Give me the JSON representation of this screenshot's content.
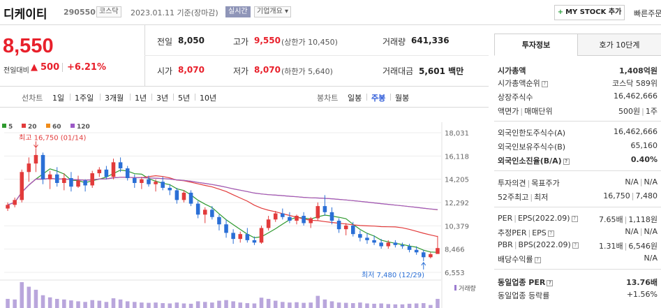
{
  "header": {
    "name": "디케이티",
    "code": "290550",
    "market": "코스닥",
    "date": "2023.01.11",
    "date_suffix": "기준(장마감)",
    "live": "실시간",
    "company_info": "기업개요 ▾",
    "mystock": "MY STOCK 추가",
    "quick": "빠른주문"
  },
  "price": {
    "current": "8,550",
    "change_label": "전일대비",
    "change_arrow": "▲",
    "change": "500",
    "change_pct": "+6.21%"
  },
  "quote": {
    "prev_label": "전일",
    "prev": "8,050",
    "high_label": "고가",
    "high": "9,550",
    "high_sub": "(상한가 10,450)",
    "volume_label": "거래량",
    "volume": "641,336",
    "open_label": "시가",
    "open": "8,070",
    "low_label": "저가",
    "low": "8,070",
    "low_sub": "(하한가 5,640)",
    "amount_label": "거래대금",
    "amount": "5,601",
    "amount_unit": "백만"
  },
  "chart_tabs": {
    "line_label": "선차트",
    "line_items": [
      "1일",
      "1주일",
      "3개월",
      "1년",
      "3년",
      "5년",
      "10년"
    ],
    "candle_label": "봉차트",
    "candle_items": [
      "일봉",
      "주봉",
      "월봉"
    ],
    "active_candle": "주봉"
  },
  "chart_data": {
    "type": "candlestick",
    "legend": [
      {
        "name": "5",
        "color": "#2f9a2f"
      },
      {
        "name": "20",
        "color": "#e23b3b"
      },
      {
        "name": "60",
        "color": "#f08c1a"
      },
      {
        "name": "120",
        "color": "#9b59c6"
      }
    ],
    "yticks": [
      "18,031",
      "16,118",
      "14,205",
      "12,292",
      "10,379",
      "8,466",
      "6,553"
    ],
    "ylim": [
      6553,
      18031
    ],
    "max_label": "최고 16,750 (01/14)",
    "min_label": "최저 7,480 (12/29)",
    "volume_label": "거래량",
    "up_color": "#e23b3b",
    "down_color": "#2a6fd6",
    "candles": [
      [
        11800,
        12300,
        11600,
        12100
      ],
      [
        12100,
        12700,
        11900,
        12500
      ],
      [
        12500,
        15000,
        12300,
        14800
      ],
      [
        14800,
        16000,
        14000,
        15500
      ],
      [
        15500,
        16750,
        14800,
        16200
      ],
      [
        16200,
        16400,
        13800,
        14200
      ],
      [
        14200,
        14900,
        13400,
        14600
      ],
      [
        14600,
        15200,
        13600,
        13900
      ],
      [
        13900,
        14700,
        13300,
        14300
      ],
      [
        14300,
        14800,
        13200,
        13600
      ],
      [
        13600,
        14500,
        13500,
        14100
      ],
      [
        14100,
        14200,
        13200,
        13700
      ],
      [
        13700,
        14900,
        13500,
        14700
      ],
      [
        14700,
        15200,
        14400,
        15000
      ],
      [
        15000,
        15300,
        14200,
        14400
      ],
      [
        14400,
        15900,
        14200,
        15600
      ],
      [
        15600,
        16000,
        14800,
        15100
      ],
      [
        15100,
        15300,
        14100,
        14300
      ],
      [
        14300,
        14600,
        13500,
        13900
      ],
      [
        13900,
        14400,
        13400,
        14200
      ],
      [
        14200,
        14500,
        13600,
        13800
      ],
      [
        13800,
        14200,
        13200,
        14000
      ],
      [
        14000,
        14400,
        13300,
        13500
      ],
      [
        13500,
        13800,
        12900,
        13300
      ],
      [
        13300,
        13500,
        12200,
        12500
      ],
      [
        12500,
        13300,
        12300,
        13100
      ],
      [
        13100,
        13300,
        12000,
        12200
      ],
      [
        12200,
        12400,
        11000,
        11300
      ],
      [
        11300,
        11900,
        10600,
        11700
      ],
      [
        11700,
        12000,
        10900,
        11100
      ],
      [
        11100,
        11300,
        10000,
        10500
      ],
      [
        10500,
        10900,
        9400,
        9800
      ],
      [
        9800,
        10100,
        8900,
        9300
      ],
      [
        9300,
        9900,
        9000,
        9700
      ],
      [
        9700,
        10200,
        9000,
        9200
      ],
      [
        9200,
        9500,
        8800,
        9000
      ],
      [
        9000,
        10400,
        8900,
        10200
      ],
      [
        10200,
        11200,
        10000,
        10900
      ],
      [
        10900,
        11600,
        10700,
        11400
      ],
      [
        11400,
        11800,
        10900,
        11100
      ],
      [
        11100,
        11500,
        10600,
        10800
      ],
      [
        10800,
        11300,
        10500,
        11200
      ],
      [
        11200,
        11500,
        10400,
        10600
      ],
      [
        10600,
        11100,
        10200,
        11000
      ],
      [
        11000,
        12300,
        10800,
        12000
      ],
      [
        12000,
        12900,
        11200,
        11500
      ],
      [
        11500,
        11900,
        10500,
        10800
      ],
      [
        10800,
        11000,
        9800,
        10100
      ],
      [
        10100,
        10600,
        9600,
        10400
      ],
      [
        10400,
        10700,
        9500,
        9700
      ],
      [
        9700,
        10000,
        9100,
        9400
      ],
      [
        9400,
        9800,
        8900,
        9200
      ],
      [
        9200,
        9600,
        8800,
        9000
      ],
      [
        9000,
        9300,
        8500,
        8700
      ],
      [
        8700,
        9200,
        8500,
        9000
      ],
      [
        9000,
        9200,
        8600,
        8800
      ],
      [
        8800,
        9000,
        8500,
        8700
      ],
      [
        8700,
        8900,
        8200,
        8400
      ],
      [
        8400,
        8700,
        8000,
        8200
      ],
      [
        8200,
        8400,
        7480,
        7800
      ],
      [
        7800,
        8200,
        7700,
        8050
      ],
      [
        8070,
        9550,
        8070,
        8550
      ]
    ],
    "volumes": [
      30,
      28,
      85,
      70,
      60,
      42,
      35,
      30,
      28,
      25,
      22,
      20,
      26,
      24,
      20,
      32,
      28,
      22,
      20,
      18,
      17,
      18,
      16,
      15,
      18,
      15,
      14,
      22,
      20,
      18,
      24,
      26,
      22,
      18,
      16,
      15,
      34,
      30,
      24,
      20,
      18,
      19,
      17,
      18,
      40,
      28,
      22,
      18,
      17,
      16,
      18,
      15,
      14,
      15,
      13,
      12,
      12,
      14,
      15,
      16,
      10,
      30
    ]
  },
  "right_panel": {
    "tab_invest": "투자정보",
    "tab_hoga": "호가 10단계",
    "market_cap_label": "시가총액",
    "market_cap": "1,408억원",
    "market_cap_rank_label": "시가총액순위",
    "market_cap_rank": "코스닥 589위",
    "shares_label": "상장주식수",
    "shares": "16,462,666",
    "par_label": "액면가",
    "unit_label": "매매단위",
    "par_value": "500원",
    "unit_value": "1주",
    "foreign_limit_label": "외국인한도주식수(A)",
    "foreign_limit": "16,462,666",
    "foreign_hold_label": "외국인보유주식수(B)",
    "foreign_hold": "65,160",
    "foreign_ratio_label": "외국인소진율(B/A)",
    "foreign_ratio": "0.40%",
    "opinion_label": "투자의견",
    "target_label": "목표주가",
    "opinion": "N/A",
    "target": "N/A",
    "w52_high_label": "52주최고",
    "w52_low_label": "최저",
    "w52_high": "16,750",
    "w52_low": "7,480",
    "per_label": "PER",
    "eps_label": "EPS(2022.09)",
    "per": "7.65배",
    "eps": "1,118원",
    "est_per_label": "추정PER",
    "est_eps_label": "EPS",
    "est_per": "N/A",
    "est_eps": "N/A",
    "pbr_label": "PBR",
    "bps_label": "BPS(2022.09)",
    "pbr": "1.31배",
    "bps": "6,546원",
    "div_label": "배당수익률",
    "div": "N/A",
    "sector_per_label": "동일업종 PER",
    "sector_per": "13.76배",
    "sector_rate_label": "동일업종 등락률",
    "sector_rate": "+1.56%"
  }
}
